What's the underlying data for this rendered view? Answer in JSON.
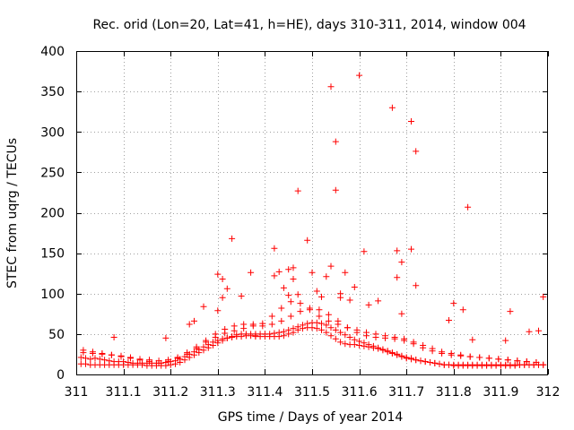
{
  "chart_data": {
    "type": "scatter",
    "title": "Rec. orid (Lon=20, Lat=41, h=HE), days 310-311, 2014, window 004",
    "xlabel": "GPS time / Days of year 2014",
    "ylabel": "STEC from uqrg / TECUs",
    "xlim": [
      311,
      312
    ],
    "ylim": [
      0,
      400
    ],
    "xticks": [
      311,
      311.1,
      311.2,
      311.3,
      311.4,
      311.5,
      311.6,
      311.7,
      311.8,
      311.9,
      312
    ],
    "xtick_labels": [
      "311",
      "311.1",
      "311.2",
      "311.3",
      "311.4",
      "311.5",
      "311.6",
      "311.7",
      "311.8",
      "311.9",
      "312"
    ],
    "yticks": [
      0,
      50,
      100,
      150,
      200,
      250,
      300,
      350,
      400
    ],
    "ytick_labels": [
      "0",
      "50",
      "100",
      "150",
      "200",
      "250",
      "300",
      "350",
      "400"
    ],
    "grid": true,
    "marker": "+",
    "color": "#ff0000",
    "series": [
      {
        "name": "STEC",
        "x": [
          311.01,
          311.02,
          311.03,
          311.04,
          311.05,
          311.06,
          311.07,
          311.08,
          311.09,
          311.1,
          311.11,
          311.12,
          311.13,
          311.14,
          311.15,
          311.16,
          311.17,
          311.18,
          311.19,
          311.2,
          311.21,
          311.22,
          311.23,
          311.24,
          311.25,
          311.26,
          311.27,
          311.28,
          311.29,
          311.3,
          311.31,
          311.32,
          311.33,
          311.34,
          311.35,
          311.36,
          311.37,
          311.38,
          311.39,
          311.4,
          311.41,
          311.42,
          311.43,
          311.44,
          311.45,
          311.46,
          311.47,
          311.48,
          311.49,
          311.5,
          311.51,
          311.52,
          311.53,
          311.54,
          311.55,
          311.56,
          311.57,
          311.58,
          311.59,
          311.6,
          311.61,
          311.62,
          311.63,
          311.64,
          311.65,
          311.66,
          311.67,
          311.68,
          311.69,
          311.7,
          311.71,
          311.72,
          311.73,
          311.74,
          311.75,
          311.76,
          311.77,
          311.78,
          311.79,
          311.8,
          311.81,
          311.82,
          311.83,
          311.84,
          311.85,
          311.86,
          311.87,
          311.88,
          311.89,
          311.9,
          311.91,
          311.92,
          311.93,
          311.94,
          311.95,
          311.96,
          311.97,
          311.98,
          311.99,
          311.01,
          311.02,
          311.03,
          311.04,
          311.05,
          311.06,
          311.07,
          311.08,
          311.09,
          311.1,
          311.11,
          311.12,
          311.13,
          311.14,
          311.15,
          311.16,
          311.17,
          311.18,
          311.19,
          311.2,
          311.21,
          311.22,
          311.23,
          311.24,
          311.25,
          311.26,
          311.27,
          311.28,
          311.29,
          311.3,
          311.31,
          311.32,
          311.33,
          311.34,
          311.35,
          311.36,
          311.37,
          311.38,
          311.39,
          311.4,
          311.41,
          311.42,
          311.43,
          311.44,
          311.45,
          311.46,
          311.47,
          311.48,
          311.49,
          311.5,
          311.51,
          311.52,
          311.53,
          311.54,
          311.55,
          311.56,
          311.57,
          311.58,
          311.59,
          311.6,
          311.61,
          311.62,
          311.63,
          311.64,
          311.65,
          311.66,
          311.67,
          311.68,
          311.69,
          311.7,
          311.71,
          311.72,
          311.73,
          311.74,
          311.75,
          311.76,
          311.77,
          311.78,
          311.79,
          311.8,
          311.81,
          311.82,
          311.83,
          311.84,
          311.85,
          311.86,
          311.87,
          311.88,
          311.89,
          311.9,
          311.91,
          311.92,
          311.93,
          311.94,
          311.95,
          311.96,
          311.97,
          311.98,
          311.99,
          311.015,
          311.035,
          311.055,
          311.075,
          311.095,
          311.115,
          311.135,
          311.155,
          311.175,
          311.195,
          311.215,
          311.235,
          311.255,
          311.275,
          311.295,
          311.315,
          311.335,
          311.355,
          311.375,
          311.395,
          311.415,
          311.435,
          311.455,
          311.475,
          311.495,
          311.515,
          311.535,
          311.555,
          311.575,
          311.595,
          311.615,
          311.635,
          311.655,
          311.675,
          311.695,
          311.715,
          311.735,
          311.755,
          311.775,
          311.795,
          311.815,
          311.835,
          311.855,
          311.875,
          311.895,
          311.915,
          311.935,
          311.955,
          311.975,
          311.015,
          311.035,
          311.055,
          311.075,
          311.095,
          311.115,
          311.135,
          311.155,
          311.175,
          311.195,
          311.215,
          311.235,
          311.255,
          311.275,
          311.295,
          311.315,
          311.335,
          311.355,
          311.375,
          311.395,
          311.415,
          311.435,
          311.455,
          311.475,
          311.495,
          311.515,
          311.535,
          311.555,
          311.575,
          311.595,
          311.615,
          311.635,
          311.655,
          311.675,
          311.695,
          311.715,
          311.735,
          311.755,
          311.775,
          311.795,
          311.815,
          311.835,
          311.855,
          311.875,
          311.895,
          311.915,
          311.935,
          311.955,
          311.975,
          311.08,
          311.19,
          311.24,
          311.25,
          311.27,
          311.3,
          311.3,
          311.31,
          311.31,
          311.32,
          311.33,
          311.35,
          311.37,
          311.38,
          311.42,
          311.42,
          311.43,
          311.44,
          311.45,
          311.45,
          311.46,
          311.46,
          311.47,
          311.47,
          311.49,
          311.5,
          311.51,
          311.52,
          311.53,
          311.54,
          311.54,
          311.55,
          311.55,
          311.56,
          311.56,
          311.57,
          311.58,
          311.59,
          311.6,
          311.61,
          311.62,
          311.64,
          311.67,
          311.68,
          311.68,
          311.69,
          311.69,
          311.71,
          311.71,
          311.72,
          311.72,
          311.79,
          311.8,
          311.82,
          311.83,
          311.84,
          311.91,
          311.92,
          311.96,
          311.98,
          311.99
        ],
        "y": [
          21,
          20,
          19,
          20,
          19,
          18,
          17,
          16,
          16,
          16,
          15,
          14,
          14,
          14,
          14,
          14,
          14,
          14,
          15,
          16,
          17,
          19,
          22,
          25,
          28,
          31,
          34,
          37,
          40,
          42,
          44,
          45,
          46,
          47,
          47,
          48,
          48,
          48,
          47,
          47,
          47,
          47,
          47,
          48,
          50,
          52,
          55,
          57,
          58,
          58,
          57,
          55,
          52,
          48,
          44,
          40,
          38,
          37,
          37,
          36,
          35,
          34,
          33,
          32,
          30,
          28,
          26,
          24,
          22,
          20,
          19,
          18,
          17,
          16,
          15,
          14,
          13,
          12,
          12,
          11,
          11,
          11,
          11,
          11,
          11,
          11,
          11,
          11,
          11,
          11,
          11,
          11,
          11,
          12,
          12,
          12,
          12,
          12,
          12,
          13,
          13,
          12,
          12,
          12,
          12,
          12,
          12,
          12,
          12,
          12,
          12,
          12,
          12,
          11,
          11,
          11,
          11,
          11,
          12,
          13,
          15,
          18,
          21,
          24,
          27,
          30,
          33,
          36,
          39,
          42,
          45,
          47,
          49,
          50,
          50,
          50,
          50,
          50,
          50,
          50,
          51,
          52,
          53,
          55,
          57,
          59,
          61,
          63,
          64,
          64,
          63,
          61,
          58,
          55,
          52,
          49,
          46,
          43,
          41,
          39,
          37,
          35,
          33,
          31,
          29,
          27,
          25,
          23,
          21,
          20,
          18,
          17,
          16,
          15,
          14,
          13,
          12,
          12,
          12,
          12,
          12,
          12,
          12,
          12,
          12,
          12,
          12,
          12,
          12,
          12,
          12,
          12,
          12,
          12,
          12,
          12,
          12,
          12,
          27,
          26,
          25,
          24,
          23,
          21,
          19,
          18,
          17,
          18,
          21,
          27,
          34,
          42,
          50,
          56,
          60,
          62,
          62,
          60,
          62,
          66,
          72,
          78,
          82,
          80,
          74,
          66,
          58,
          52,
          48,
          46,
          45,
          44,
          42,
          38,
          33,
          29,
          26,
          24,
          23,
          22,
          21,
          20,
          19,
          18,
          17,
          16,
          15,
          30,
          28,
          26,
          24,
          22,
          20,
          18,
          16,
          14,
          16,
          20,
          25,
          32,
          40,
          46,
          51,
          54,
          57,
          60,
          63,
          72,
          82,
          90,
          88,
          80,
          72,
          66,
          62,
          58,
          55,
          52,
          50,
          48,
          46,
          44,
          40,
          36,
          32,
          28,
          26,
          24,
          22,
          21,
          20,
          19,
          18,
          17,
          16,
          15,
          46,
          45,
          62,
          66,
          84,
          79,
          124,
          95,
          118,
          106,
          168,
          97,
          126,
          47,
          156,
          122,
          127,
          107,
          98,
          130,
          132,
          118,
          227,
          99,
          166,
          126,
          103,
          96,
          121,
          356,
          134,
          288,
          228,
          100,
          95,
          126,
          92,
          108,
          370,
          152,
          86,
          91,
          330,
          153,
          120,
          75,
          139,
          155,
          313,
          276,
          110,
          67,
          88,
          80,
          207,
          43,
          42,
          78,
          53,
          54,
          96
        ]
      }
    ]
  }
}
